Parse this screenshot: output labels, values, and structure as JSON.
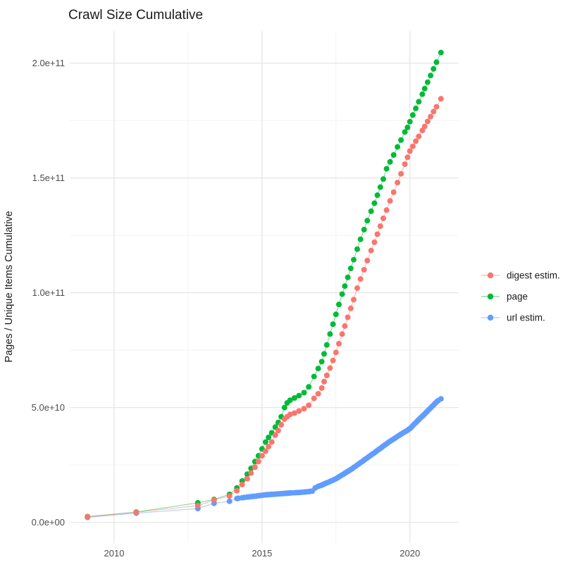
{
  "title": "Crawl Size Cumulative",
  "chart_data": {
    "type": "scatter",
    "title": "Crawl Size Cumulative",
    "xlabel": "",
    "ylabel": "Pages / Unique Items Cumulative",
    "grid": true,
    "legend_position": "right",
    "background": "#ffffff",
    "xlim": [
      2008.5,
      2021.65
    ],
    "ylim_billions": [
      -9,
      214
    ],
    "x_ticks": {
      "values": [
        2010,
        2015,
        2020
      ],
      "labels": [
        "2010",
        "2015",
        "2020"
      ]
    },
    "x_minor_ticks": [
      2012.5,
      2017.5
    ],
    "y_ticks": {
      "values_billions": [
        0,
        50,
        100,
        150,
        200
      ],
      "labels": [
        "0.0e+00",
        "5.0e+10",
        "1.0e+11",
        "1.5e+11",
        "2.0e+11"
      ]
    },
    "y_minor_ticks_billions": [
      25,
      75,
      125,
      175
    ],
    "value_unit_pages": 1000000000,
    "series": [
      {
        "name": "digest estim.",
        "color": "#F8766D",
        "points_year_billions": [
          [
            2009.1,
            2.4
          ],
          [
            2010.75,
            4.4
          ],
          [
            2012.83,
            7.3
          ],
          [
            2013.38,
            9.7
          ],
          [
            2013.9,
            11.5
          ],
          [
            2014.15,
            13.8
          ],
          [
            2014.33,
            16.5
          ],
          [
            2014.5,
            19.0
          ],
          [
            2014.63,
            21.5
          ],
          [
            2014.76,
            24.0
          ],
          [
            2014.88,
            26.5
          ],
          [
            2015.0,
            29.0
          ],
          [
            2015.12,
            31.0
          ],
          [
            2015.22,
            33.0
          ],
          [
            2015.33,
            35.0
          ],
          [
            2015.45,
            38.0
          ],
          [
            2015.55,
            40.0
          ],
          [
            2015.65,
            42.5
          ],
          [
            2015.76,
            45.0
          ],
          [
            2015.85,
            46.0
          ],
          [
            2015.95,
            47.0
          ],
          [
            2016.1,
            47.6
          ],
          [
            2016.25,
            48.5
          ],
          [
            2016.42,
            49.5
          ],
          [
            2016.58,
            51.0
          ],
          [
            2016.76,
            54.0
          ],
          [
            2016.9,
            56.0
          ],
          [
            2017.02,
            58.5
          ],
          [
            2017.1,
            61.3
          ],
          [
            2017.19,
            64.0
          ],
          [
            2017.3,
            67.2
          ],
          [
            2017.4,
            70.5
          ],
          [
            2017.5,
            74.0
          ],
          [
            2017.6,
            77.8
          ],
          [
            2017.71,
            82.0
          ],
          [
            2017.8,
            85.5
          ],
          [
            2017.9,
            89.3
          ],
          [
            2018.0,
            93.2
          ],
          [
            2018.1,
            97.0
          ],
          [
            2018.22,
            102.0
          ],
          [
            2018.33,
            106.0
          ],
          [
            2018.45,
            110.0
          ],
          [
            2018.56,
            114.0
          ],
          [
            2018.69,
            118.4
          ],
          [
            2018.8,
            122.0
          ],
          [
            2018.9,
            125.5
          ],
          [
            2019.0,
            129.0
          ],
          [
            2019.1,
            132.4
          ],
          [
            2019.21,
            136.0
          ],
          [
            2019.33,
            140.0
          ],
          [
            2019.45,
            143.8
          ],
          [
            2019.58,
            148.0
          ],
          [
            2019.7,
            151.8
          ],
          [
            2019.83,
            156.0
          ],
          [
            2019.92,
            159.0
          ],
          [
            2020.0,
            161.7
          ],
          [
            2020.1,
            163.8
          ],
          [
            2020.2,
            166.0
          ],
          [
            2020.3,
            168.1
          ],
          [
            2020.42,
            170.7
          ],
          [
            2020.5,
            172.4
          ],
          [
            2020.6,
            174.6
          ],
          [
            2020.7,
            176.7
          ],
          [
            2020.8,
            178.9
          ],
          [
            2020.9,
            181.0
          ],
          [
            2021.05,
            184.5
          ]
        ]
      },
      {
        "name": "page",
        "color": "#00BA38",
        "points_year_billions": [
          [
            2009.1,
            2.5
          ],
          [
            2010.75,
            4.5
          ],
          [
            2012.83,
            8.5
          ],
          [
            2013.38,
            10.0
          ],
          [
            2013.9,
            12.2
          ],
          [
            2014.15,
            15.0
          ],
          [
            2014.33,
            18.0
          ],
          [
            2014.5,
            21.0
          ],
          [
            2014.63,
            23.5
          ],
          [
            2014.76,
            26.5
          ],
          [
            2014.88,
            29.0
          ],
          [
            2015.0,
            32.0
          ],
          [
            2015.12,
            35.0
          ],
          [
            2015.22,
            37.0
          ],
          [
            2015.33,
            39.0
          ],
          [
            2015.45,
            41.5
          ],
          [
            2015.55,
            43.5
          ],
          [
            2015.65,
            46.0
          ],
          [
            2015.76,
            50.0
          ],
          [
            2015.85,
            52.0
          ],
          [
            2015.95,
            53.2
          ],
          [
            2016.1,
            54.2
          ],
          [
            2016.25,
            55.2
          ],
          [
            2016.42,
            56.5
          ],
          [
            2016.58,
            59.0
          ],
          [
            2016.76,
            63.5
          ],
          [
            2016.9,
            67.0
          ],
          [
            2017.02,
            70.0
          ],
          [
            2017.1,
            73.4
          ],
          [
            2017.19,
            77.3
          ],
          [
            2017.3,
            82.0
          ],
          [
            2017.4,
            86.3
          ],
          [
            2017.5,
            90.6
          ],
          [
            2017.6,
            94.9
          ],
          [
            2017.71,
            99.4
          ],
          [
            2017.8,
            102.9
          ],
          [
            2017.9,
            106.7
          ],
          [
            2018.0,
            110.6
          ],
          [
            2018.1,
            114.4
          ],
          [
            2018.22,
            119.0
          ],
          [
            2018.33,
            123.3
          ],
          [
            2018.45,
            127.5
          ],
          [
            2018.56,
            131.4
          ],
          [
            2018.69,
            135.5
          ],
          [
            2018.8,
            139.0
          ],
          [
            2018.9,
            142.5
          ],
          [
            2019.0,
            146.0
          ],
          [
            2019.1,
            149.5
          ],
          [
            2019.21,
            154.0
          ],
          [
            2019.33,
            157.0
          ],
          [
            2019.45,
            160.0
          ],
          [
            2019.58,
            163.5
          ],
          [
            2019.7,
            166.5
          ],
          [
            2019.83,
            170.0
          ],
          [
            2019.92,
            172.0
          ],
          [
            2020.0,
            174.5
          ],
          [
            2020.1,
            177.4
          ],
          [
            2020.2,
            180.3
          ],
          [
            2020.3,
            183.2
          ],
          [
            2020.42,
            186.5
          ],
          [
            2020.5,
            188.9
          ],
          [
            2020.6,
            191.7
          ],
          [
            2020.7,
            194.6
          ],
          [
            2020.8,
            197.5
          ],
          [
            2020.9,
            200.4
          ],
          [
            2021.05,
            204.6
          ]
        ]
      },
      {
        "name": "url estim.",
        "color": "#619CFF",
        "points_year_billions": [
          [
            2009.1,
            2.2
          ],
          [
            2010.75,
            4.0
          ],
          [
            2012.83,
            6.0
          ],
          [
            2013.38,
            8.3
          ],
          [
            2013.9,
            9.2
          ],
          [
            2014.15,
            10.4
          ],
          [
            2014.2,
            10.5
          ],
          [
            2014.33,
            10.7
          ],
          [
            2014.4,
            10.85
          ],
          [
            2014.5,
            11.0
          ],
          [
            2014.56,
            11.1
          ],
          [
            2014.63,
            11.2
          ],
          [
            2014.7,
            11.3
          ],
          [
            2014.76,
            11.4
          ],
          [
            2014.82,
            11.5
          ],
          [
            2014.88,
            11.6
          ],
          [
            2014.94,
            11.7
          ],
          [
            2015.0,
            11.8
          ],
          [
            2015.06,
            11.9
          ],
          [
            2015.12,
            12.0
          ],
          [
            2015.17,
            12.05
          ],
          [
            2015.22,
            12.1
          ],
          [
            2015.28,
            12.15
          ],
          [
            2015.33,
            12.2
          ],
          [
            2015.39,
            12.25
          ],
          [
            2015.45,
            12.3
          ],
          [
            2015.5,
            12.35
          ],
          [
            2015.55,
            12.4
          ],
          [
            2015.6,
            12.45
          ],
          [
            2015.65,
            12.5
          ],
          [
            2015.7,
            12.55
          ],
          [
            2015.76,
            12.6
          ],
          [
            2015.8,
            12.65
          ],
          [
            2015.85,
            12.7
          ],
          [
            2015.9,
            12.75
          ],
          [
            2015.95,
            12.8
          ],
          [
            2016.0,
            12.85
          ],
          [
            2016.1,
            12.9
          ],
          [
            2016.17,
            12.95
          ],
          [
            2016.25,
            13.0
          ],
          [
            2016.33,
            13.1
          ],
          [
            2016.42,
            13.2
          ],
          [
            2016.5,
            13.3
          ],
          [
            2016.58,
            13.4
          ],
          [
            2016.63,
            13.5
          ],
          [
            2016.7,
            13.6
          ],
          [
            2016.8,
            15.0
          ],
          [
            2016.9,
            15.7
          ],
          [
            2016.95,
            15.9
          ],
          [
            2017.02,
            16.2
          ],
          [
            2017.06,
            16.45
          ],
          [
            2017.1,
            16.7
          ],
          [
            2017.15,
            17.0
          ],
          [
            2017.19,
            17.2
          ],
          [
            2017.25,
            17.5
          ],
          [
            2017.3,
            17.8
          ],
          [
            2017.35,
            18.1
          ],
          [
            2017.4,
            18.4
          ],
          [
            2017.45,
            18.7
          ],
          [
            2017.5,
            19.0
          ],
          [
            2017.55,
            19.4
          ],
          [
            2017.6,
            19.8
          ],
          [
            2017.65,
            20.2
          ],
          [
            2017.71,
            20.7
          ],
          [
            2017.76,
            21.0
          ],
          [
            2017.8,
            21.4
          ],
          [
            2017.85,
            21.8
          ],
          [
            2017.9,
            22.2
          ],
          [
            2017.95,
            22.6
          ],
          [
            2018.0,
            23.0
          ],
          [
            2018.05,
            23.4
          ],
          [
            2018.1,
            23.9
          ],
          [
            2018.16,
            24.4
          ],
          [
            2018.22,
            25.0
          ],
          [
            2018.28,
            25.5
          ],
          [
            2018.33,
            26.0
          ],
          [
            2018.39,
            26.5
          ],
          [
            2018.45,
            27.1
          ],
          [
            2018.5,
            27.6
          ],
          [
            2018.56,
            28.1
          ],
          [
            2018.62,
            28.7
          ],
          [
            2018.69,
            29.3
          ],
          [
            2018.74,
            29.8
          ],
          [
            2018.8,
            30.3
          ],
          [
            2018.85,
            30.8
          ],
          [
            2018.9,
            31.3
          ],
          [
            2018.95,
            31.8
          ],
          [
            2019.0,
            32.2
          ],
          [
            2019.05,
            32.7
          ],
          [
            2019.1,
            33.2
          ],
          [
            2019.15,
            33.7
          ],
          [
            2019.21,
            34.2
          ],
          [
            2019.27,
            34.8
          ],
          [
            2019.33,
            35.3
          ],
          [
            2019.39,
            35.8
          ],
          [
            2019.45,
            36.3
          ],
          [
            2019.51,
            36.8
          ],
          [
            2019.58,
            37.4
          ],
          [
            2019.64,
            37.9
          ],
          [
            2019.7,
            38.4
          ],
          [
            2019.76,
            38.9
          ],
          [
            2019.83,
            39.4
          ],
          [
            2019.87,
            39.7
          ],
          [
            2019.92,
            40.1
          ],
          [
            2019.96,
            40.5
          ],
          [
            2020.0,
            40.8
          ],
          [
            2020.05,
            41.5
          ],
          [
            2020.1,
            42.1
          ],
          [
            2020.15,
            42.8
          ],
          [
            2020.2,
            43.4
          ],
          [
            2020.25,
            44.1
          ],
          [
            2020.3,
            44.7
          ],
          [
            2020.36,
            45.5
          ],
          [
            2020.42,
            46.2
          ],
          [
            2020.46,
            46.7
          ],
          [
            2020.5,
            47.2
          ],
          [
            2020.55,
            47.9
          ],
          [
            2020.6,
            48.5
          ],
          [
            2020.65,
            49.2
          ],
          [
            2020.7,
            49.8
          ],
          [
            2020.75,
            50.5
          ],
          [
            2020.8,
            51.1
          ],
          [
            2020.85,
            51.8
          ],
          [
            2020.9,
            52.4
          ],
          [
            2020.95,
            53.0
          ],
          [
            2021.05,
            53.8
          ]
        ]
      }
    ]
  }
}
